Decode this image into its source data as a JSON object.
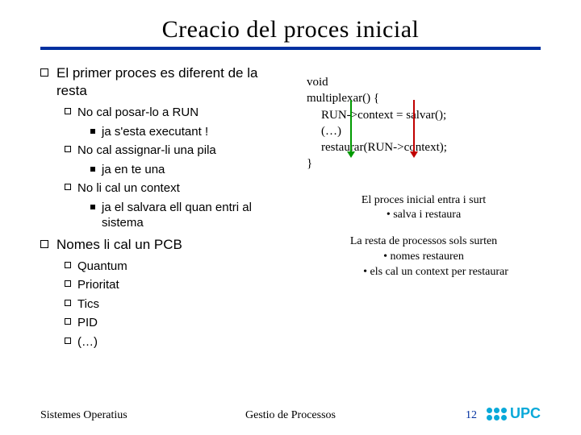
{
  "title": "Creacio del proces inicial",
  "left": {
    "heading1": "El primer proces es diferent de la resta",
    "items1": [
      {
        "text": "No cal posar-lo a RUN",
        "sub": [
          "ja s'esta executant !"
        ]
      },
      {
        "text": "No cal assignar-li una pila",
        "sub": [
          "ja en te una"
        ]
      },
      {
        "text": "No li cal un context",
        "sub": [
          "ja el salvara ell quan entri al sistema"
        ]
      }
    ],
    "heading2": "Nomes li cal un PCB",
    "items2": [
      "Quantum",
      "Prioritat",
      "Tics",
      "PID",
      "(…)"
    ]
  },
  "code": {
    "l1": "void",
    "l2": "multiplexar() {",
    "l3": "RUN->context = salvar();",
    "l4": "(…)",
    "l5": "restaurar(RUN->context);",
    "l6": "}",
    "arrows": {
      "green": "#009a00",
      "red": "#c00000"
    }
  },
  "notes": {
    "n1": "El proces inicial entra i surt",
    "n1b": "• salva i restaura",
    "n2": "La resta de processos sols surten",
    "n2b": "• nomes restauren",
    "n2c": "• els cal un context per restaurar"
  },
  "footer": {
    "left": "Sistemes Operatius",
    "center": "Gestio de Processos",
    "page": "12",
    "logo_text": "UPC",
    "logo_color": "#0aa9d9",
    "page_color": "#0030a0"
  },
  "colors": {
    "underline": "#0030a0"
  }
}
